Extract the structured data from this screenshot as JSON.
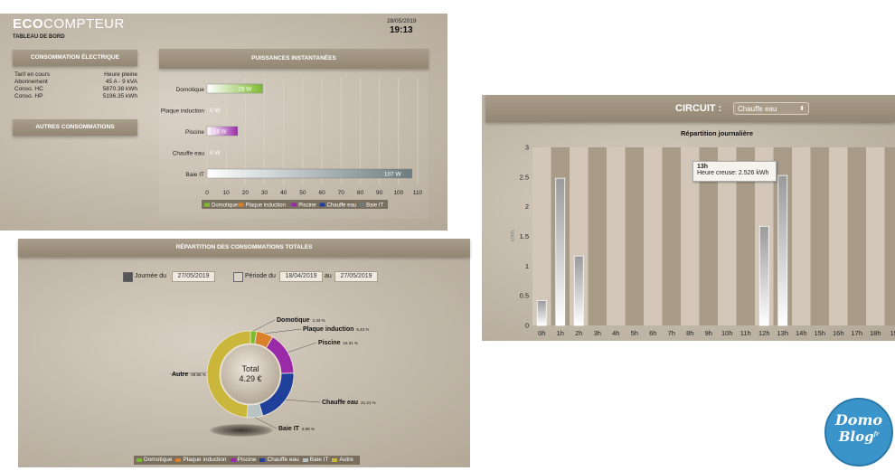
{
  "app": {
    "title_bold": "ECO",
    "title_rest": "COMPTEUR",
    "subtitle": "TABLEAU DE BORD",
    "date": "28/05/2019",
    "time": "19:13"
  },
  "conso": {
    "header": "CONSOMMATION ÉLECTRIQUE",
    "rows": [
      {
        "label": "Tarif en cours",
        "value": "Heure pleine"
      },
      {
        "label": "Abonnement",
        "value": "45 A - 9 kVA"
      },
      {
        "label": "Conso. HC",
        "value": "5870.38 kWh"
      },
      {
        "label": "Conso. HP",
        "value": "5196.35 kWh"
      }
    ],
    "other_header": "AUTRES CONSOMMATIONS"
  },
  "power": {
    "header": "PUISSANCES INSTANTANÉES",
    "items": [
      {
        "label": "Domotique",
        "value": 29,
        "text": "29 W",
        "color": "#7dba2f"
      },
      {
        "label": "Plaque induction",
        "value": 0,
        "text": "0 W",
        "color": "#d9822b"
      },
      {
        "label": "Piscine",
        "value": 16,
        "text": "16 W",
        "color": "#9b2aa8"
      },
      {
        "label": "Chauffe eau",
        "value": 0,
        "text": "0 W",
        "color": "#1e3f9a"
      },
      {
        "label": "Baie IT",
        "value": 107,
        "text": "107 W",
        "color": "#6d7d7f"
      }
    ],
    "ticks": [
      "0",
      "10",
      "20",
      "30",
      "40",
      "50",
      "60",
      "70",
      "80",
      "90",
      "100",
      "110"
    ],
    "legend": [
      "Domotique",
      "Plaque induction",
      "Piscine",
      "Chauffe eau",
      "Baie IT"
    ]
  },
  "repartition": {
    "header": "RÉPARTITION DES CONSOMMATIONS TOTALES",
    "day_label": "Journée du",
    "day_value": "27/05/2019",
    "period_label": "Période du",
    "period_from": "18/04/2019",
    "period_to_label": "au",
    "period_to": "27/05/2019",
    "total_label": "Total",
    "total_value": "4.29 €",
    "legend": [
      "Domotique",
      "Plaque induction",
      "Piscine",
      "Chauffe eau",
      "Baie IT",
      "Autre"
    ]
  },
  "chart_data": {
    "type": "pie",
    "slices": [
      {
        "label": "Domotique",
        "pct_text": "2.33 %",
        "value": 2.33,
        "color": "#7dba2f"
      },
      {
        "label": "Plaque induction",
        "pct_text": "6.43 %",
        "value": 6.43,
        "color": "#d9822b"
      },
      {
        "label": "Piscine",
        "pct_text": "16.31 %",
        "value": 16.31,
        "color": "#9b2aa8"
      },
      {
        "label": "Chauffe eau",
        "pct_text": "21.21 %",
        "value": 21.21,
        "color": "#1e3f9a"
      },
      {
        "label": "Baie IT",
        "pct_text": "6.08 %",
        "value": 6.08,
        "color": "#b8c3c4"
      },
      {
        "label": "Autre",
        "pct_text": "49.66 %",
        "value": 49.66,
        "color": "#c9b63a"
      }
    ]
  },
  "circuit": {
    "label": "CIRCUIT :",
    "selected": "Chauffe eau",
    "chart_title": "Répartition journalière",
    "ylabel": "kWh",
    "yticks": [
      "3",
      "2.5",
      "2",
      "1.5",
      "1",
      "0.5",
      "0"
    ],
    "categories": [
      "0h",
      "1h",
      "2h",
      "3h",
      "4h",
      "5h",
      "6h",
      "7h",
      "8h",
      "9h",
      "10h",
      "11h",
      "12h",
      "13h",
      "14h",
      "15h",
      "16h",
      "17h",
      "18h",
      "19"
    ],
    "values": [
      0.42,
      2.48,
      1.17,
      0,
      0,
      0,
      0,
      0,
      0,
      0,
      0,
      0,
      1.67,
      2.526,
      0,
      0,
      0,
      0,
      0,
      0
    ],
    "tooltip_title": "13h",
    "tooltip_text": "Heure creuse: 2.526 kWh"
  },
  "badge": {
    "line1": "Domo",
    "line2": "Blog",
    "suffix": "fr"
  }
}
